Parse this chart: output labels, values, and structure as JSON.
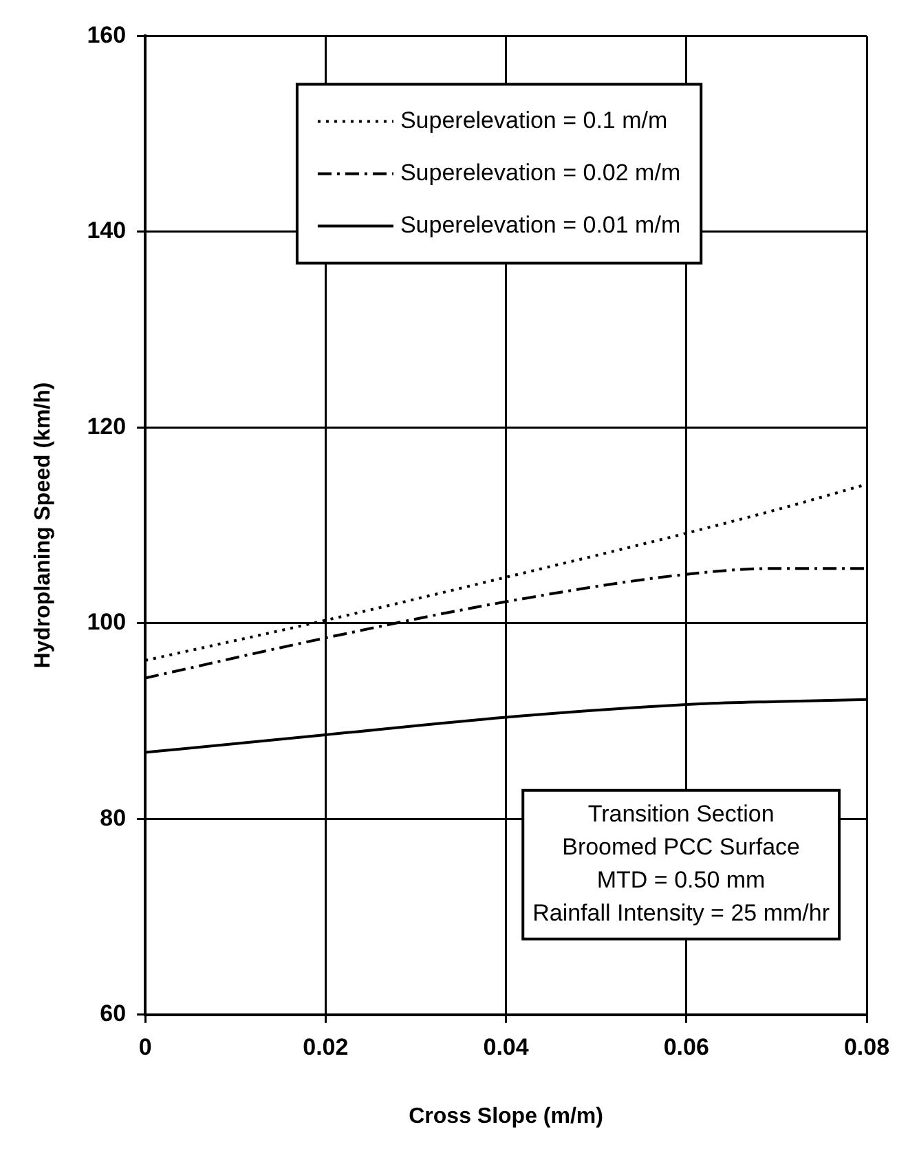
{
  "chart_data": {
    "type": "line",
    "xlabel": "Cross Slope (m/m)",
    "ylabel": "Hydroplaning Speed (km/h)",
    "x": [
      0,
      0.02,
      0.04,
      0.06,
      0.07,
      0.08
    ],
    "series": [
      {
        "name": "Superelevation = 0.1 m/m",
        "color": "#000000",
        "line_style": "dotted",
        "values": [
          96.2,
          100.3,
          104.7,
          109.2,
          111.6,
          114.2
        ]
      },
      {
        "name": "Superelevation = 0.02 m/m",
        "color": "#000000",
        "line_style": "dashdot",
        "values": [
          94.4,
          98.5,
          102.2,
          105,
          105.6,
          105.6
        ]
      },
      {
        "name": "Superelevation = 0.01 m/m",
        "color": "#000000",
        "line_style": "solid",
        "values": [
          86.8,
          88.6,
          90.4,
          91.7,
          92,
          92.2
        ]
      }
    ],
    "xlim": [
      0,
      0.08
    ],
    "xticks": [
      0,
      0.02,
      0.04,
      0.06,
      0.08
    ],
    "ylim": [
      60,
      160
    ],
    "yticks": [
      60,
      80,
      100,
      120,
      140,
      160
    ],
    "grid": true,
    "legend": "top",
    "marker": "none",
    "annotations": [
      "Transition Section\nBroomed PCC Surface\nMTD = 0.50 mm\nRainfall Intensity = 25 mm/hr"
    ]
  }
}
